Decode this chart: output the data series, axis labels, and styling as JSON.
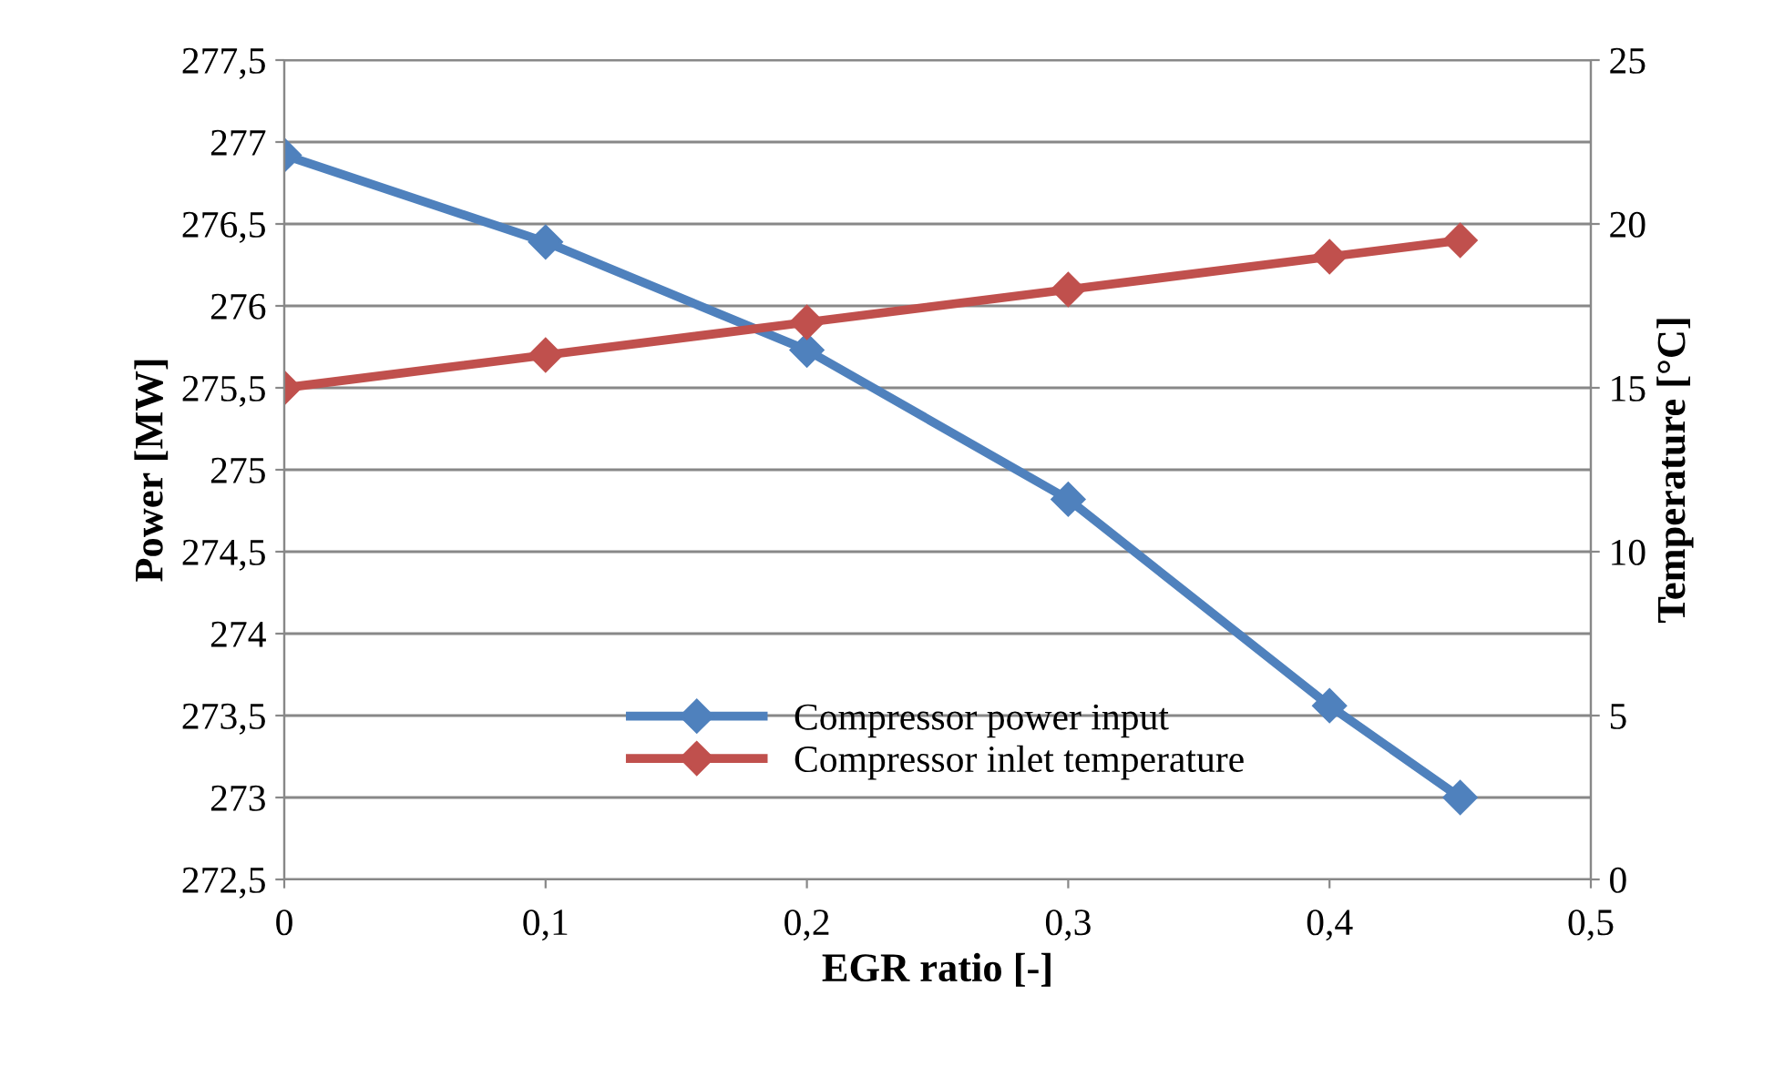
{
  "chart_data": {
    "type": "line",
    "xlabel": "EGR ratio [-]",
    "ylabel": "Power [MW]",
    "y2label": "Temperature [°C]",
    "xlim": [
      0,
      0.5
    ],
    "xticks": [
      0,
      {
        "value": 0.1,
        "label": "0,1"
      },
      {
        "value": 0.2,
        "label": "0,2"
      },
      {
        "value": 0.3,
        "label": "0,3"
      },
      {
        "value": 0.4,
        "label": "0,4"
      },
      {
        "value": 0.5,
        "label": "0,5"
      }
    ],
    "ylim": [
      272.5,
      277.5
    ],
    "yticks": [
      {
        "value": 272.5,
        "label": "272,5"
      },
      273,
      {
        "value": 273.5,
        "label": "273,5"
      },
      274,
      {
        "value": 274.5,
        "label": "274,5"
      },
      275,
      {
        "value": 275.5,
        "label": "275,5"
      },
      276,
      {
        "value": 276.5,
        "label": "276,5"
      },
      277,
      {
        "value": 277.5,
        "label": "277,5"
      }
    ],
    "y2lim": [
      0,
      25
    ],
    "y2ticks": [
      0,
      5,
      10,
      15,
      20,
      25
    ],
    "x": [
      0,
      0.1,
      0.2,
      0.3,
      0.4,
      0.45
    ],
    "series": [
      {
        "name": "Compressor power input",
        "color": "#4f81bd",
        "values": [
          276.92,
          276.39,
          275.73,
          274.82,
          273.56,
          273.0
        ]
      },
      {
        "name": "Compressor inlet temperature",
        "color": "#c0504d",
        "axis": "y2",
        "values": [
          15,
          16,
          17,
          18,
          19,
          19.5
        ]
      }
    ],
    "grid": "y",
    "legend": "bottom",
    "marker": "diamond",
    "line_style": "solid"
  }
}
